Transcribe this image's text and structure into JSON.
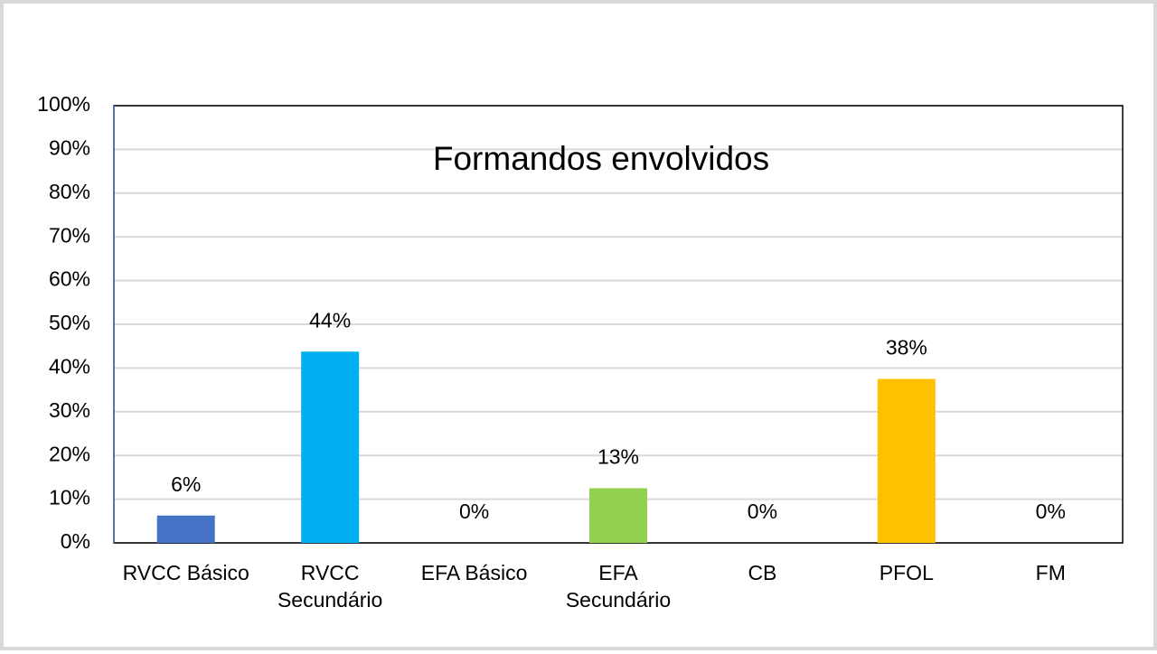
{
  "chart_data": {
    "type": "bar",
    "title": "Formandos envolvidos",
    "categories": [
      "RVCC Básico",
      "RVCC\nSecundário",
      "EFA Básico",
      "EFA\nSecundário",
      "CB",
      "PFOL",
      "FM"
    ],
    "values": [
      6.25,
      43.75,
      0,
      12.5,
      0,
      37.5,
      0
    ],
    "value_labels": [
      "6%",
      "44%",
      "0%",
      "13%",
      "0%",
      "38%",
      "0%"
    ],
    "colors": [
      "#4472c4",
      "#00b0f0",
      null,
      "#92d050",
      null,
      "#ffc000",
      null
    ],
    "ylim": [
      0,
      100
    ],
    "yticks": [
      {
        "value": 0,
        "label": "0%"
      },
      {
        "value": 10,
        "label": "10%"
      },
      {
        "value": 20,
        "label": "20%"
      },
      {
        "value": 30,
        "label": "30%"
      },
      {
        "value": 40,
        "label": "40%"
      },
      {
        "value": 50,
        "label": "50%"
      },
      {
        "value": 60,
        "label": "60%"
      },
      {
        "value": 70,
        "label": "70%"
      },
      {
        "value": 80,
        "label": "80%"
      },
      {
        "value": 90,
        "label": "90%"
      },
      {
        "value": 100,
        "label": "100%"
      }
    ],
    "grid": true
  }
}
